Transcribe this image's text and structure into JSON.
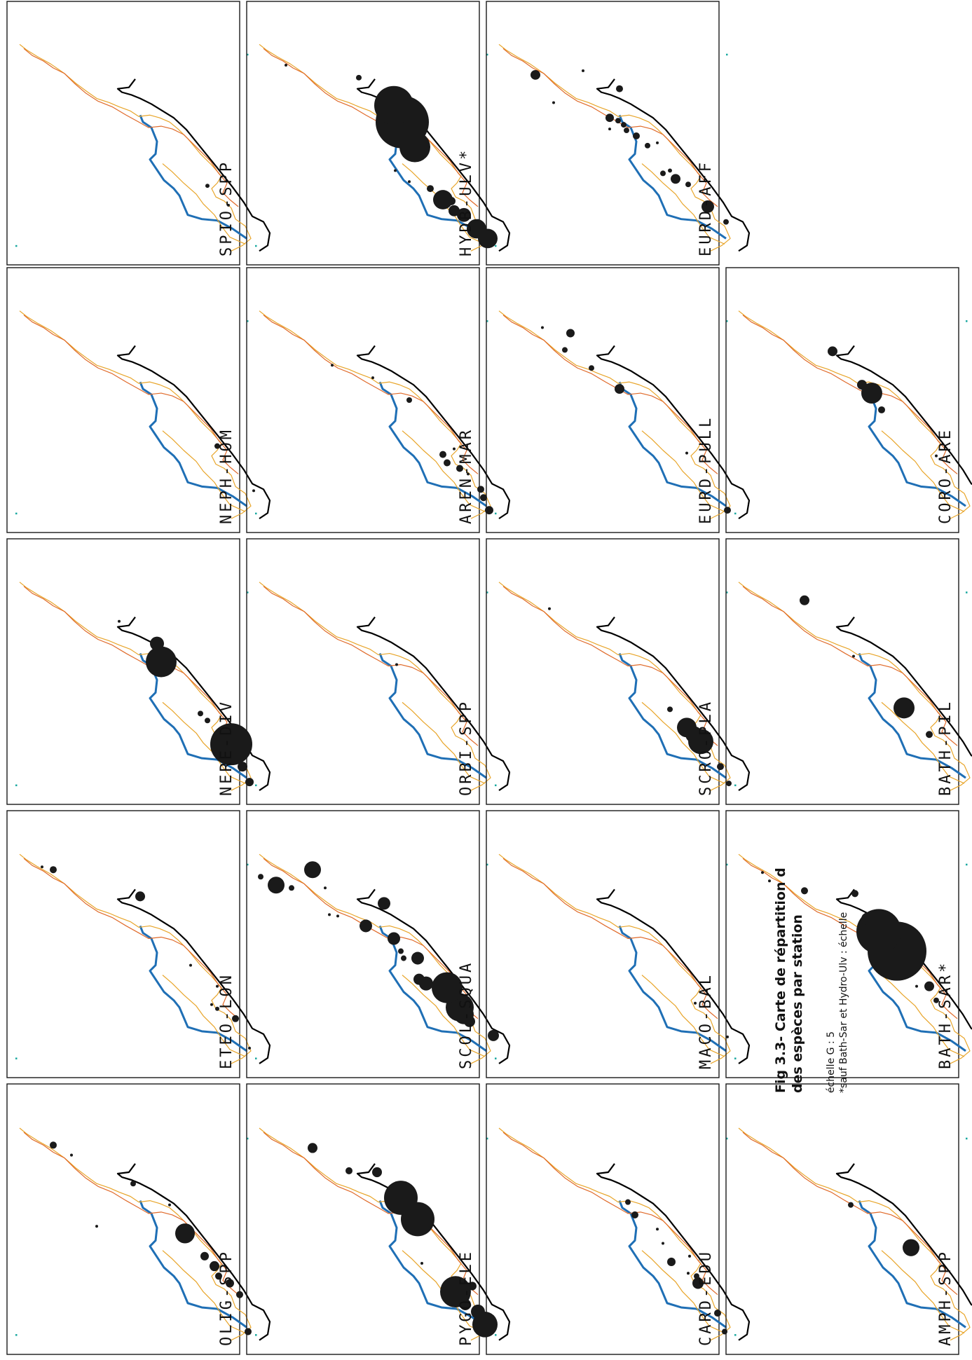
{
  "figure": {
    "title_line1": "Fig 3.3- Carte de répartition d",
    "title_line2": "des espèces par station",
    "note_line1": "échelle G : 5",
    "note_line2": "*sauf Bath-Sar et Hydro-Ulv : échelle"
  },
  "colors": {
    "coast": "#000000",
    "river": "#1f6fb5",
    "isobath_outer": "#e8a52a",
    "isobath_inner": "#e06a2a",
    "station_dot": "#1a1a1a"
  },
  "panels": [
    {
      "label": "OLIG-SPP"
    },
    {
      "label": "ETEO-LON"
    },
    {
      "label": "NERE-DIV"
    },
    {
      "label": "NEPH-HOM"
    },
    {
      "label": "SPIO-SPP"
    },
    {
      "label": "PYGO-ELE"
    },
    {
      "label": "SCOL-SQUA"
    },
    {
      "label": "ORBI-SPP"
    },
    {
      "label": "AREN-MAR"
    },
    {
      "label": "HYDB-ULV*"
    },
    {
      "label": "CARD-EDU"
    },
    {
      "label": "MACO-BAL"
    },
    {
      "label": "SCRO-PLA"
    },
    {
      "label": "EURD-PULL"
    },
    {
      "label": "EURD-AFF"
    },
    {
      "label": "AMPH-SPP"
    },
    {
      "label": "BATH-SAR*"
    },
    {
      "label": "BATH-PIL"
    },
    {
      "label": "CORO-ARE"
    }
  ]
}
